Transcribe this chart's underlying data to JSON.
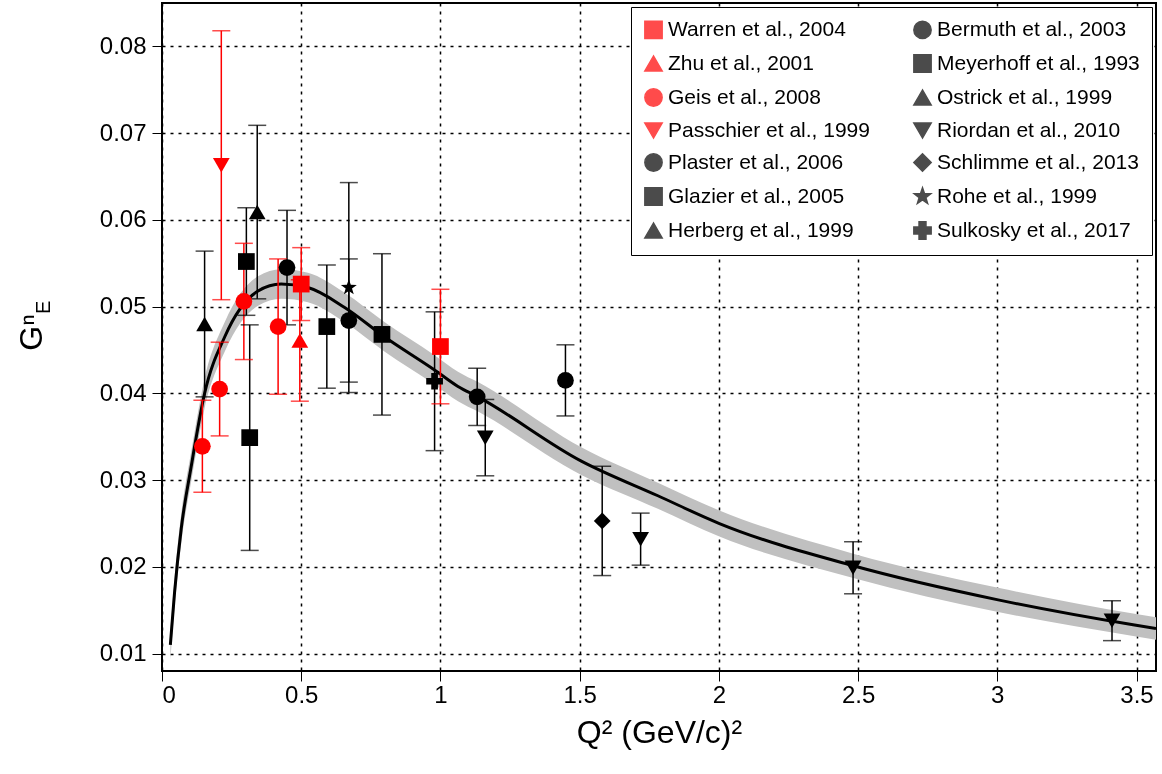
{
  "chart_data": {
    "type": "scatter",
    "xlabel": "Q² (GeV/c)²",
    "ylabel": "Gⁿ$_{E}$",
    "xlim": [
      0,
      3.57
    ],
    "ylim": [
      0.008,
      0.085
    ],
    "xticks": [
      0,
      0.5,
      1,
      1.5,
      2,
      2.5,
      3,
      3.5
    ],
    "yticks": [
      0.01,
      0.02,
      0.03,
      0.04,
      0.05,
      0.06,
      0.07,
      0.08
    ],
    "grid": true,
    "legend": "top right",
    "series": [
      {
        "type": "line",
        "color": "#000000",
        "marker": "none",
        "x": [
          0.03,
          0.045,
          0.069,
          0.105,
          0.153,
          0.225,
          0.345,
          0.428,
          0.524,
          0.656,
          0.8,
          0.979,
          1.063,
          1.135,
          1.506,
          1.781,
          2.002,
          2.486,
          3.003,
          3.493,
          3.57
        ],
        "values": [
          0.011,
          0.017,
          0.0244,
          0.0316,
          0.04,
          0.0465,
          0.0518,
          0.0526,
          0.0522,
          0.0499,
          0.0465,
          0.0427,
          0.0408,
          0.0396,
          0.0322,
          0.0282,
          0.025,
          0.0201,
          0.0162,
          0.0133,
          0.0129
        ],
        "lower": [
          0.0093,
          0.0153,
          0.0227,
          0.0299,
          0.0383,
          0.0448,
          0.0501,
          0.0509,
          0.0505,
          0.0482,
          0.0448,
          0.041,
          0.0391,
          0.0379,
          0.0306,
          0.0267,
          0.0235,
          0.0187,
          0.0148,
          0.012,
          0.0116
        ],
        "upper": [
          0.0127,
          0.0187,
          0.0261,
          0.0333,
          0.0417,
          0.0482,
          0.0535,
          0.0543,
          0.0539,
          0.0516,
          0.0482,
          0.0444,
          0.0425,
          0.0413,
          0.0338,
          0.0297,
          0.0265,
          0.0215,
          0.0176,
          0.0146,
          0.0142
        ]
      },
      {
        "name": "Warren et al., 2004",
        "color": "#ff0000",
        "marker": "square",
        "x": [
          0.5,
          1.0
        ],
        "values": [
          0.0526,
          0.0454
        ],
        "errors": [
          0.0042,
          0.0066
        ]
      },
      {
        "name": "Zhu et al., 2001",
        "color": "#ff0000",
        "marker": "triangle",
        "x": [
          0.495
        ],
        "values": [
          0.0461
        ],
        "errors": [
          0.007
        ]
      },
      {
        "name": "Geis et al., 2008",
        "color": "#ff0000",
        "marker": "circle",
        "x": [
          0.145,
          0.207,
          0.294,
          0.417
        ],
        "values": [
          0.0339,
          0.0405,
          0.0506,
          0.0477
        ],
        "errors": [
          0.0053,
          0.0054,
          0.0067,
          0.0078
        ]
      },
      {
        "name": "Passchier et al., 1999",
        "color": "#ff0000",
        "marker": "triangle-down",
        "x": [
          0.213
        ],
        "values": [
          0.0663
        ],
        "errors": [
          0.0155
        ]
      },
      {
        "name": "Plaster et al., 2006",
        "color": "#000000",
        "marker": "circle",
        "x": [
          0.449,
          1.132,
          1.449
        ],
        "values": [
          0.0545,
          0.0396,
          0.0415
        ],
        "errors": [
          0.0066,
          0.0033,
          0.0041
        ]
      },
      {
        "name": "Glazier et al., 2005",
        "color": "#000000",
        "marker": "square",
        "x": [
          0.303,
          0.592,
          0.79
        ],
        "values": [
          0.0552,
          0.0477,
          0.0468
        ],
        "errors": [
          0.0062,
          0.0071,
          0.0093
        ]
      },
      {
        "name": "Herberg et al., 1999",
        "color": "#000000",
        "marker": "triangle",
        "x": [
          0.153
        ],
        "values": [
          0.048
        ],
        "errors": [
          0.0084
        ]
      },
      {
        "name": "Bermuth et al., 2003",
        "color": "#000000",
        "marker": "circle",
        "x": [
          0.671
        ],
        "values": [
          0.0484
        ],
        "errors": [
          0.0071
        ]
      },
      {
        "name": "Meyerhoff et al., 1993",
        "color": "#000000",
        "marker": "square",
        "x": [
          0.315
        ],
        "values": [
          0.0349
        ],
        "errors": [
          0.013
        ]
      },
      {
        "name": "Ostrick et al., 1999",
        "color": "#000000",
        "marker": "triangle",
        "x": [
          0.342
        ],
        "values": [
          0.0609
        ],
        "errors": [
          0.01
        ]
      },
      {
        "name": "Riordan et al., 2010",
        "color": "#000000",
        "marker": "triangle-down",
        "x": [
          1.161,
          1.719,
          2.482,
          3.412
        ],
        "values": [
          0.0349,
          0.0232,
          0.0199,
          0.0138
        ],
        "errors": [
          0.0044,
          0.003,
          0.003,
          0.0023
        ]
      },
      {
        "name": "Schlimme et al., 2013",
        "color": "#000000",
        "marker": "diamond",
        "x": [
          1.581
        ],
        "values": [
          0.0253
        ],
        "errors": [
          0.0063
        ]
      },
      {
        "name": "Rohe et al., 1999",
        "color": "#000000",
        "marker": "star",
        "x": [
          0.671
        ],
        "values": [
          0.0522
        ],
        "errors": [
          0.0121
        ]
      },
      {
        "name": "Sulkosky et al., 2017",
        "color": "#000000",
        "marker": "cross",
        "x": [
          0.979
        ],
        "values": [
          0.0414
        ],
        "errors": [
          0.008
        ]
      }
    ]
  }
}
